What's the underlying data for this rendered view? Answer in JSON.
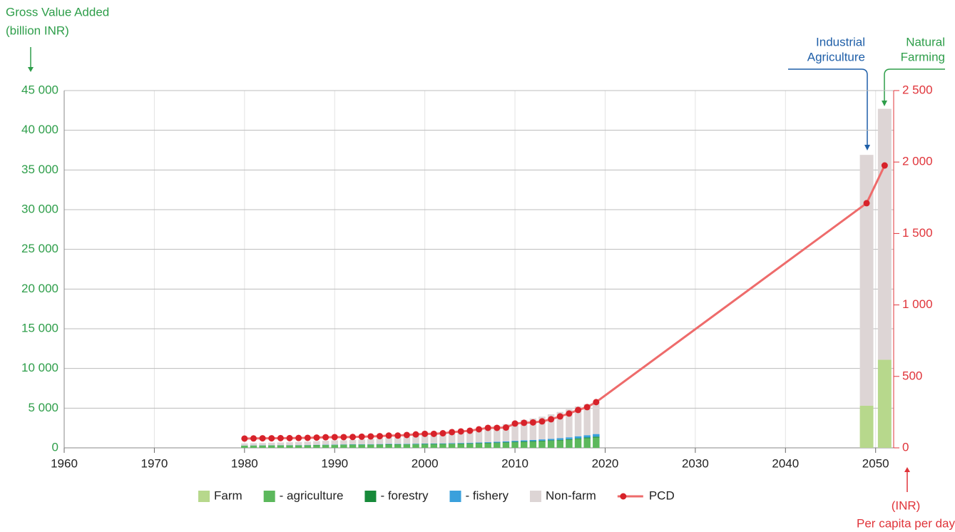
{
  "chart_data": {
    "type": "bar",
    "ylabel": [
      "Gross Value Added",
      "(billion INR)"
    ],
    "y2label": [
      "(INR)",
      "Per capita per day"
    ],
    "annotations": [
      {
        "text": [
          "Industrial",
          "Agriculture"
        ],
        "color": "#1f5fa8"
      },
      {
        "text": [
          "Natural",
          "Farming"
        ],
        "color": "#2e9e4a"
      }
    ],
    "x": [
      1980,
      1981,
      1982,
      1983,
      1984,
      1985,
      1986,
      1987,
      1988,
      1989,
      1990,
      1991,
      1992,
      1993,
      1994,
      1995,
      1996,
      1997,
      1998,
      1999,
      2000,
      2001,
      2002,
      2003,
      2004,
      2005,
      2006,
      2007,
      2008,
      2009,
      2010,
      2011,
      2012,
      2013,
      2014,
      2015,
      2016,
      2017,
      2018,
      2019,
      2049,
      2051
    ],
    "xlim": [
      1960,
      2052
    ],
    "xticks": [
      1960,
      1970,
      1980,
      1990,
      2000,
      2010,
      2020,
      2030,
      2040,
      2050
    ],
    "ylim": [
      0,
      45000
    ],
    "yticks": [
      0,
      {
        "value": 5000,
        "label": "5 000"
      },
      {
        "value": 10000,
        "label": "10 000"
      },
      {
        "value": 15000,
        "label": "15 000"
      },
      {
        "value": 20000,
        "label": "20 000"
      },
      {
        "value": 25000,
        "label": "25 000"
      },
      {
        "value": 30000,
        "label": "30 000"
      },
      {
        "value": 35000,
        "label": "35 000"
      },
      {
        "value": 40000,
        "label": "40 000"
      },
      {
        "value": 45000,
        "label": "45 000"
      }
    ],
    "y2lim": [
      0,
      2500
    ],
    "y2ticks": [
      0,
      500,
      {
        "value": 1000,
        "label": "1 000"
      },
      {
        "value": 1500,
        "label": "1 500"
      },
      {
        "value": 2000,
        "label": "2 000"
      },
      {
        "value": 2500,
        "label": "2 500"
      }
    ],
    "grid": true,
    "series": [
      {
        "name": "Farm",
        "type": "bar",
        "color": "#b7d88c",
        "values": [
          null,
          null,
          null,
          null,
          null,
          null,
          null,
          null,
          null,
          null,
          null,
          null,
          null,
          null,
          null,
          null,
          null,
          null,
          null,
          null,
          null,
          null,
          null,
          null,
          null,
          null,
          null,
          null,
          null,
          null,
          null,
          null,
          null,
          null,
          null,
          null,
          null,
          null,
          null,
          null,
          5300,
          11100
        ]
      },
      {
        "name": "- agriculture",
        "type": "bar",
        "color": "#5cb85c",
        "values": [
          250,
          260,
          265,
          275,
          280,
          285,
          290,
          300,
          320,
          335,
          345,
          355,
          365,
          375,
          385,
          395,
          405,
          410,
          420,
          430,
          440,
          445,
          450,
          470,
          490,
          510,
          540,
          570,
          600,
          640,
          690,
          730,
          770,
          820,
          870,
          920,
          1000,
          1100,
          1200,
          1300,
          null,
          null
        ]
      },
      {
        "name": "- forestry",
        "type": "bar",
        "color": "#178a3a",
        "values": [
          30,
          31,
          32,
          33,
          34,
          35,
          36,
          37,
          38,
          39,
          40,
          41,
          42,
          43,
          44,
          45,
          46,
          47,
          48,
          49,
          50,
          52,
          54,
          56,
          58,
          60,
          62,
          65,
          68,
          71,
          74,
          77,
          80,
          84,
          88,
          92,
          96,
          100,
          105,
          110,
          null,
          null
        ]
      },
      {
        "name": "- fishery",
        "type": "bar",
        "color": "#3aa0dc",
        "values": [
          15,
          16,
          17,
          18,
          19,
          20,
          22,
          24,
          26,
          28,
          30,
          32,
          34,
          36,
          38,
          40,
          43,
          46,
          49,
          52,
          55,
          58,
          61,
          65,
          70,
          75,
          80,
          90,
          100,
          110,
          120,
          135,
          150,
          165,
          180,
          200,
          230,
          260,
          290,
          330,
          null,
          null
        ]
      },
      {
        "name": "Non-farm",
        "type": "bar",
        "color": "#ddd5d5",
        "values": [
          265,
          283,
          296,
          324,
          347,
          370,
          392,
          419,
          456,
          488,
          525,
          522,
          559,
          606,
          653,
          720,
          796,
          837,
          903,
          1029,
          1075,
          1145,
          1195,
          1309,
          1442,
          1595,
          1768,
          1955,
          2012,
          2169,
          2426,
          2578,
          2700,
          2861,
          3092,
          3308,
          3554,
          3760,
          3905,
          4060,
          31600,
          31600
        ]
      },
      {
        "name": "PCD",
        "type": "line",
        "axis": "y2",
        "color": "#d7222a",
        "line_color": "#ee6b6b",
        "values": [
          65,
          66,
          67,
          67,
          68,
          68,
          69,
          70,
          72,
          74,
          75,
          75,
          76,
          78,
          80,
          82,
          86,
          86,
          90,
          94,
          98,
          98,
          102,
          110,
          115,
          120,
          130,
          140,
          140,
          142,
          170,
          175,
          178,
          185,
          200,
          220,
          240,
          265,
          285,
          320,
          1712,
          1976
        ]
      }
    ]
  }
}
